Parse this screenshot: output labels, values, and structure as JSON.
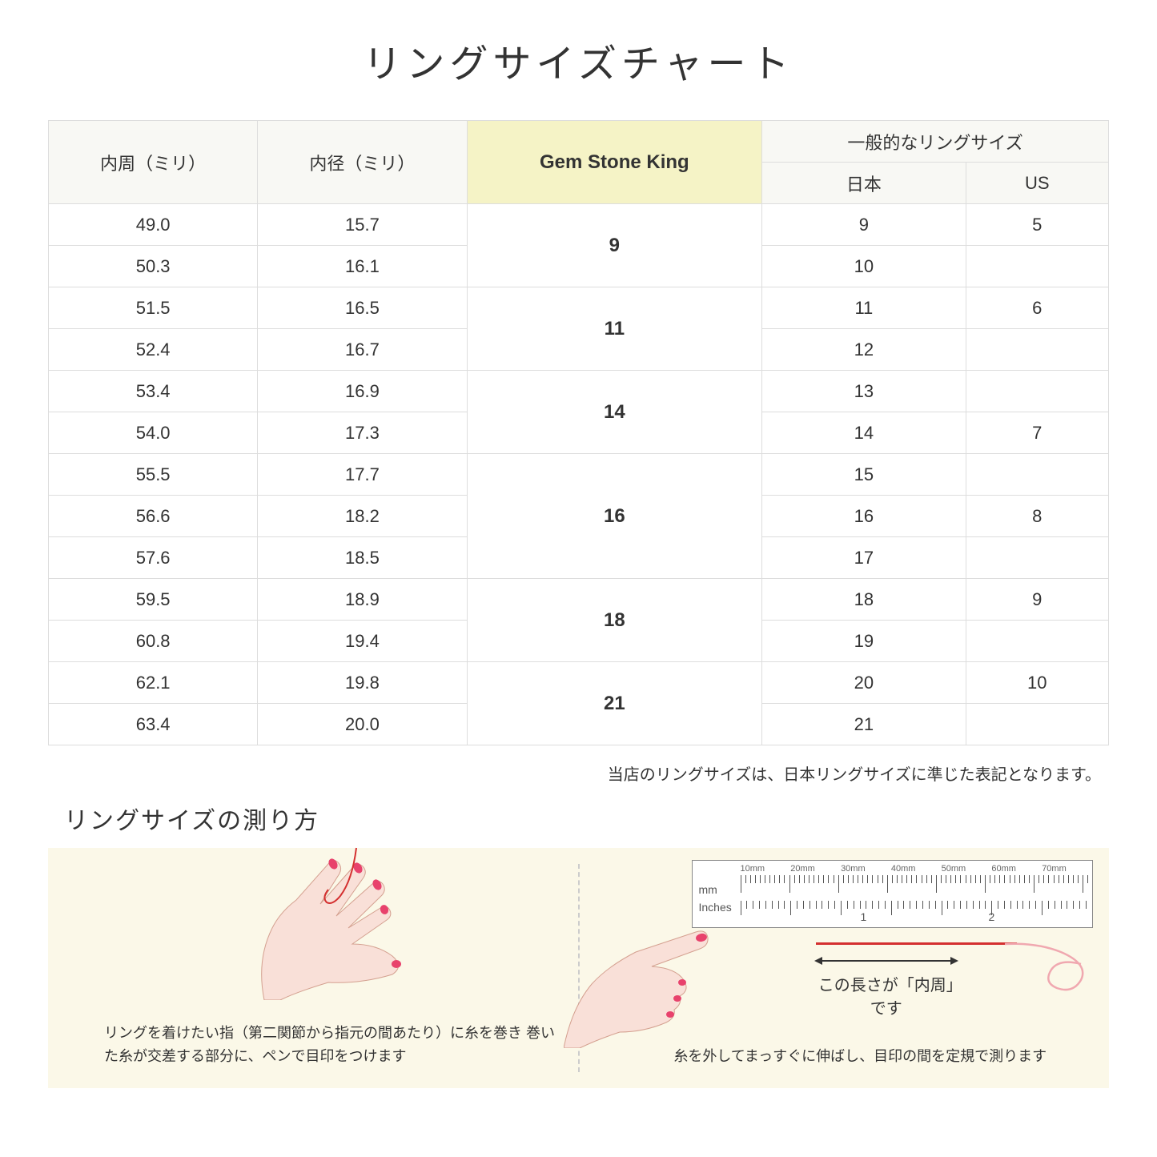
{
  "title": "リングサイズチャート",
  "headers": {
    "circumference": "内周（ミリ）",
    "diameter": "内径（ミリ）",
    "gsk": "Gem Stone King",
    "common": "一般的なリングサイズ",
    "japan": "日本",
    "us": "US"
  },
  "groups": [
    {
      "gsk": "9",
      "rows": [
        {
          "circ": "49.0",
          "dia": "15.7",
          "jp": "9",
          "us": "5"
        },
        {
          "circ": "50.3",
          "dia": "16.1",
          "jp": "10",
          "us": ""
        }
      ]
    },
    {
      "gsk": "11",
      "rows": [
        {
          "circ": "51.5",
          "dia": "16.5",
          "jp": "11",
          "us": "6"
        },
        {
          "circ": "52.4",
          "dia": "16.7",
          "jp": "12",
          "us": ""
        }
      ]
    },
    {
      "gsk": "14",
      "rows": [
        {
          "circ": "53.4",
          "dia": "16.9",
          "jp": "13",
          "us": ""
        },
        {
          "circ": "54.0",
          "dia": "17.3",
          "jp": "14",
          "us": "7"
        }
      ]
    },
    {
      "gsk": "16",
      "rows": [
        {
          "circ": "55.5",
          "dia": "17.7",
          "jp": "15",
          "us": ""
        },
        {
          "circ": "56.6",
          "dia": "18.2",
          "jp": "16",
          "us": "8"
        },
        {
          "circ": "57.6",
          "dia": "18.5",
          "jp": "17",
          "us": ""
        }
      ]
    },
    {
      "gsk": "18",
      "rows": [
        {
          "circ": "59.5",
          "dia": "18.9",
          "jp": "18",
          "us": "9"
        },
        {
          "circ": "60.8",
          "dia": "19.4",
          "jp": "19",
          "us": ""
        }
      ]
    },
    {
      "gsk": "21",
      "rows": [
        {
          "circ": "62.1",
          "dia": "19.8",
          "jp": "20",
          "us": "10"
        },
        {
          "circ": "63.4",
          "dia": "20.0",
          "jp": "21",
          "us": ""
        }
      ]
    }
  ],
  "note": "当店のリングサイズは、日本リングサイズに準じた表記となります。",
  "subtitle": "リングサイズの測り方",
  "instruction_left": "リングを着けたい指（第二関節から指元の間あたり）に糸を巻き\n巻いた糸が交差する部分に、ペンで目印をつけます",
  "instruction_right": "糸を外してまっすぐに伸ばし、目印の間を定規で測ります",
  "arrow_label": "この長さが「内周」です",
  "ruler": {
    "mm_unit": "mm",
    "in_unit": "Inches",
    "mm_marks": [
      "10mm",
      "20mm",
      "30mm",
      "40mm",
      "50mm",
      "60mm",
      "70mm"
    ],
    "in_marks": [
      "1",
      "2"
    ]
  },
  "colors": {
    "header_bg": "#f8f8f4",
    "gsk_bg": "#f5f3c6",
    "border": "#dddddd",
    "instruction_bg": "#fbf8e8",
    "skin": "#f9e0d8",
    "nail": "#e8426c",
    "thread": "#d43030",
    "curl": "#f0a8b0"
  }
}
